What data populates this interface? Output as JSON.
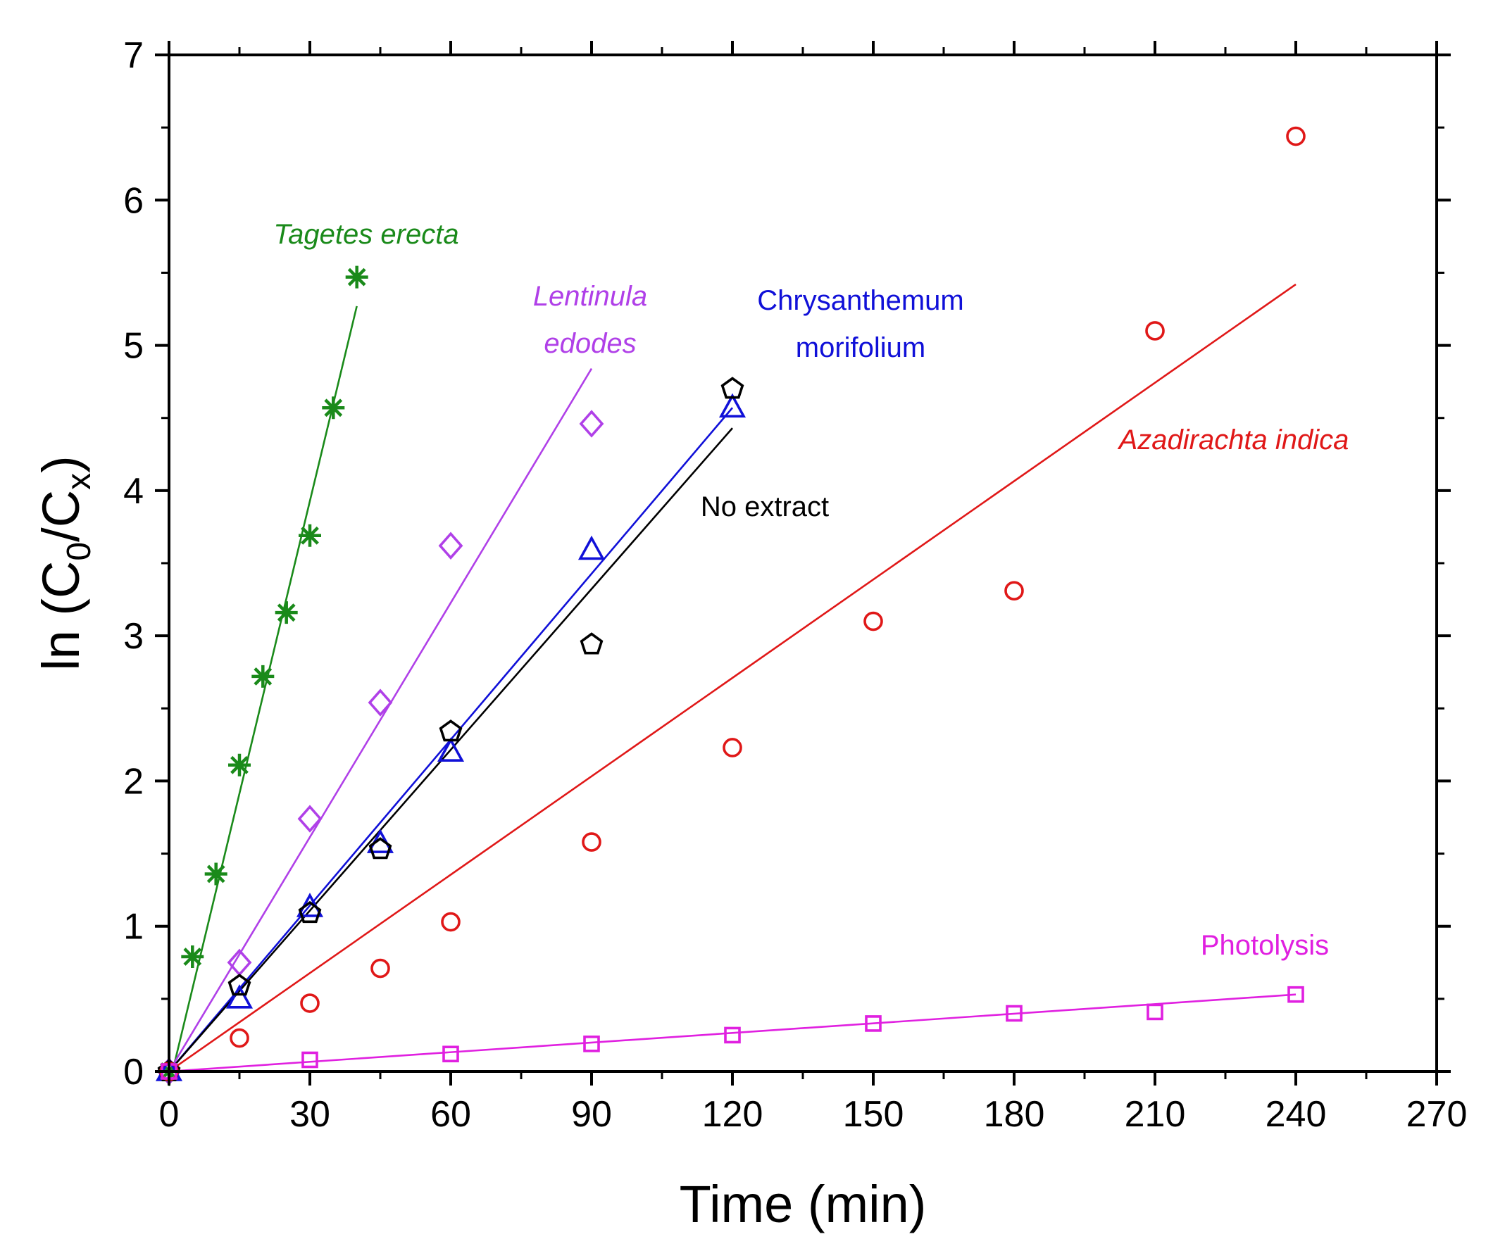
{
  "chart_data": {
    "type": "scatter",
    "xlabel": "Time (min)",
    "ylabel": {
      "prefix": "ln (C",
      "sub1": "0",
      "mid": "/C",
      "sub2": "x",
      "suffix": ")"
    },
    "xlim": [
      0,
      270
    ],
    "ylim": [
      0,
      7
    ],
    "xticks": [
      "0",
      "30",
      "60",
      "90",
      "120",
      "150",
      "180",
      "210",
      "240",
      "270"
    ],
    "yticks": [
      "0",
      "1",
      "2",
      "3",
      "4",
      "5",
      "6",
      "7"
    ],
    "grid": false,
    "series": [
      {
        "name": "Tagetes erecta",
        "label_lines": [
          "Tagetes erecta"
        ],
        "italic": true,
        "color": "#1a8a1a",
        "marker": "asterisk",
        "points": [
          [
            0,
            0
          ],
          [
            5,
            0.79
          ],
          [
            10,
            1.36
          ],
          [
            15,
            2.11
          ],
          [
            20,
            2.72
          ],
          [
            25,
            3.16
          ],
          [
            30,
            3.69
          ],
          [
            35,
            4.57
          ],
          [
            40,
            5.47
          ]
        ],
        "fit": [
          [
            0,
            -0.1
          ],
          [
            40,
            5.27
          ]
        ]
      },
      {
        "name": "Lentinula edodes",
        "label_lines": [
          "Lentinula",
          "edodes"
        ],
        "italic": true,
        "color": "#b040e8",
        "marker": "diamond",
        "points": [
          [
            0,
            0
          ],
          [
            15,
            0.75
          ],
          [
            30,
            1.74
          ],
          [
            45,
            2.54
          ],
          [
            60,
            3.62
          ],
          [
            90,
            4.46
          ]
        ],
        "fit": [
          [
            0,
            0
          ],
          [
            90,
            4.84
          ]
        ]
      },
      {
        "name": "Chrysanthemum morifolium",
        "label_lines": [
          "Chrysanthemum",
          "morifolium"
        ],
        "italic": false,
        "color": "#1010d8",
        "marker": "triangle",
        "points": [
          [
            0,
            0
          ],
          [
            15,
            0.5
          ],
          [
            30,
            1.13
          ],
          [
            45,
            1.57
          ],
          [
            60,
            2.2
          ],
          [
            90,
            3.59
          ],
          [
            120,
            4.57
          ]
        ],
        "fit": [
          [
            0,
            0
          ],
          [
            120,
            4.57
          ]
        ]
      },
      {
        "name": "No extract",
        "label_lines": [
          "No extract"
        ],
        "italic": false,
        "color": "#000000",
        "marker": "pentagon",
        "points": [
          [
            0,
            0
          ],
          [
            15,
            0.59
          ],
          [
            30,
            1.09
          ],
          [
            45,
            1.53
          ],
          [
            60,
            2.34
          ],
          [
            90,
            2.94
          ],
          [
            120,
            4.7
          ]
        ],
        "fit": [
          [
            0,
            0
          ],
          [
            120,
            4.43
          ]
        ]
      },
      {
        "name": "Azadirachta indica",
        "label_lines": [
          "Azadirachta indica"
        ],
        "italic": true,
        "color": "#e01818",
        "marker": "circle",
        "points": [
          [
            0,
            0
          ],
          [
            15,
            0.23
          ],
          [
            30,
            0.47
          ],
          [
            45,
            0.71
          ],
          [
            60,
            1.03
          ],
          [
            90,
            1.58
          ],
          [
            120,
            2.23
          ],
          [
            150,
            3.1
          ],
          [
            180,
            3.31
          ],
          [
            210,
            5.1
          ],
          [
            240,
            6.44
          ]
        ],
        "fit": [
          [
            0,
            0
          ],
          [
            240,
            5.42
          ]
        ]
      },
      {
        "name": "Photolysis",
        "label_lines": [
          "Photolysis"
        ],
        "italic": false,
        "color": "#e020e0",
        "marker": "square",
        "points": [
          [
            0,
            0
          ],
          [
            30,
            0.08
          ],
          [
            60,
            0.12
          ],
          [
            90,
            0.19
          ],
          [
            120,
            0.25
          ],
          [
            150,
            0.33
          ],
          [
            180,
            0.4
          ],
          [
            210,
            0.41
          ],
          [
            240,
            0.53
          ]
        ],
        "fit": [
          [
            0,
            0
          ],
          [
            240,
            0.53
          ]
        ]
      }
    ]
  }
}
